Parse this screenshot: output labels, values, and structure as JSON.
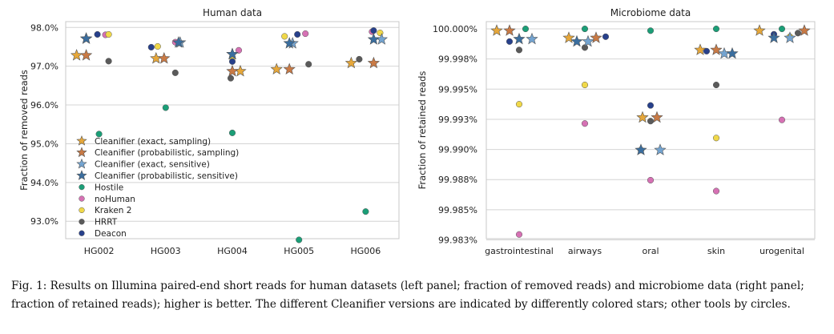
{
  "legend_items": [
    {
      "key": "ce",
      "label": "Cleanifier (exact, sampling)",
      "marker": "star",
      "color": "#e6a73a"
    },
    {
      "key": "cp",
      "label": "Cleanifier (probabilistic, sampling)",
      "marker": "star",
      "color": "#c97a45"
    },
    {
      "key": "cx",
      "label": "Cleanifier (exact, sensitive)",
      "marker": "star",
      "color": "#74a4d0"
    },
    {
      "key": "cs",
      "label": "Cleanifier (probabilistic, sensitive)",
      "marker": "star",
      "color": "#3a6e9f"
    },
    {
      "key": "ho",
      "label": "Hostile",
      "marker": "circle",
      "color": "#1b9e77"
    },
    {
      "key": "nh",
      "label": "noHuman",
      "marker": "circle",
      "color": "#d671b4"
    },
    {
      "key": "k2",
      "label": "Kraken 2",
      "marker": "circle",
      "color": "#f0d849"
    },
    {
      "key": "hr",
      "label": "HRRT",
      "marker": "circle",
      "color": "#5a5a5a"
    },
    {
      "key": "de",
      "label": "Deacon",
      "marker": "circle",
      "color": "#27408b"
    }
  ],
  "chart_data": [
    {
      "type": "scatter",
      "title": "Human data",
      "xlabel": "",
      "ylabel": "Fraction of removed reads",
      "categories": [
        "HG002",
        "HG003",
        "HG004",
        "HG005",
        "HG006"
      ],
      "ylim": [
        92.55,
        98.15
      ],
      "yticks": [
        93,
        94,
        95,
        96,
        97,
        98
      ],
      "ytick_labels": [
        "93.0%",
        "94.0%",
        "95.0%",
        "96.0%",
        "97.0%",
        "98.0%"
      ],
      "grid": "horizontal",
      "legend_position": "lower-left",
      "series": [
        {
          "key": "ce",
          "values": [
            97.28,
            97.2,
            96.87,
            96.92,
            97.08
          ]
        },
        {
          "key": "cp",
          "values": [
            97.28,
            97.2,
            96.87,
            96.92,
            97.08
          ]
        },
        {
          "key": "cx",
          "values": [
            97.71,
            97.61,
            97.31,
            97.59,
            97.69
          ]
        },
        {
          "key": "cs",
          "values": [
            97.71,
            97.61,
            97.31,
            97.59,
            97.69
          ]
        },
        {
          "key": "ho",
          "values": [
            95.25,
            95.93,
            95.28,
            92.52,
            93.25
          ]
        },
        {
          "key": "nh",
          "values": [
            97.81,
            97.62,
            97.41,
            97.84,
            97.89
          ]
        },
        {
          "key": "k2",
          "values": [
            97.82,
            97.51,
            97.22,
            97.77,
            97.86
          ]
        },
        {
          "key": "hr",
          "values": [
            97.13,
            96.83,
            96.69,
            97.05,
            97.18
          ]
        },
        {
          "key": "de",
          "values": [
            97.82,
            97.49,
            97.12,
            97.82,
            97.92
          ]
        }
      ]
    },
    {
      "type": "scatter",
      "title": "Microbiome data",
      "xlabel": "",
      "ylabel": "Fraction of retained reads",
      "categories": [
        "gastrointestinal",
        "airways",
        "oral",
        "skin",
        "urogenital"
      ],
      "ylim": [
        99.9826,
        100.0006
      ],
      "yticks": [
        99.9825,
        99.985,
        99.9875,
        99.99,
        99.9925,
        99.995,
        99.9975,
        100.0
      ],
      "ytick_labels": [
        "99.983%",
        "99.985%",
        "99.988%",
        "99.990%",
        "99.993%",
        "99.995%",
        "99.998%",
        "100.000%"
      ],
      "grid": "horizontal",
      "series": [
        {
          "key": "ce",
          "values": [
            99.99985,
            99.99925,
            99.99265,
            99.99825,
            99.99985
          ]
        },
        {
          "key": "cp",
          "values": [
            99.99985,
            99.99925,
            99.99265,
            99.99825,
            99.99985
          ]
        },
        {
          "key": "cx",
          "values": [
            99.99915,
            99.99895,
            99.98995,
            99.99795,
            99.99925
          ]
        },
        {
          "key": "cs",
          "values": [
            99.99915,
            99.99895,
            99.98995,
            99.99795,
            99.99925
          ]
        },
        {
          "key": "ho",
          "values": [
            100.0,
            100.0,
            99.99985,
            100.0,
            100.0
          ]
        },
        {
          "key": "nh",
          "values": [
            99.98295,
            99.99215,
            99.98745,
            99.98655,
            99.99245
          ]
        },
        {
          "key": "k2",
          "values": [
            99.99375,
            99.99535,
            99.98995,
            99.99095,
            99.99935
          ]
        },
        {
          "key": "hr",
          "values": [
            99.99825,
            99.99845,
            99.99235,
            99.99535,
            99.99965
          ]
        },
        {
          "key": "de",
          "values": [
            99.99895,
            99.99935,
            99.99365,
            99.99815,
            99.99955
          ]
        }
      ]
    }
  ],
  "caption": "Fig. 1: Results on Illumina paired-end short reads for human datasets (left panel; fraction of removed reads) and microbiome data (right panel; fraction of retained reads); higher is better. The different Cleanifier versions are indicated by differently colored stars; other tools by circles."
}
